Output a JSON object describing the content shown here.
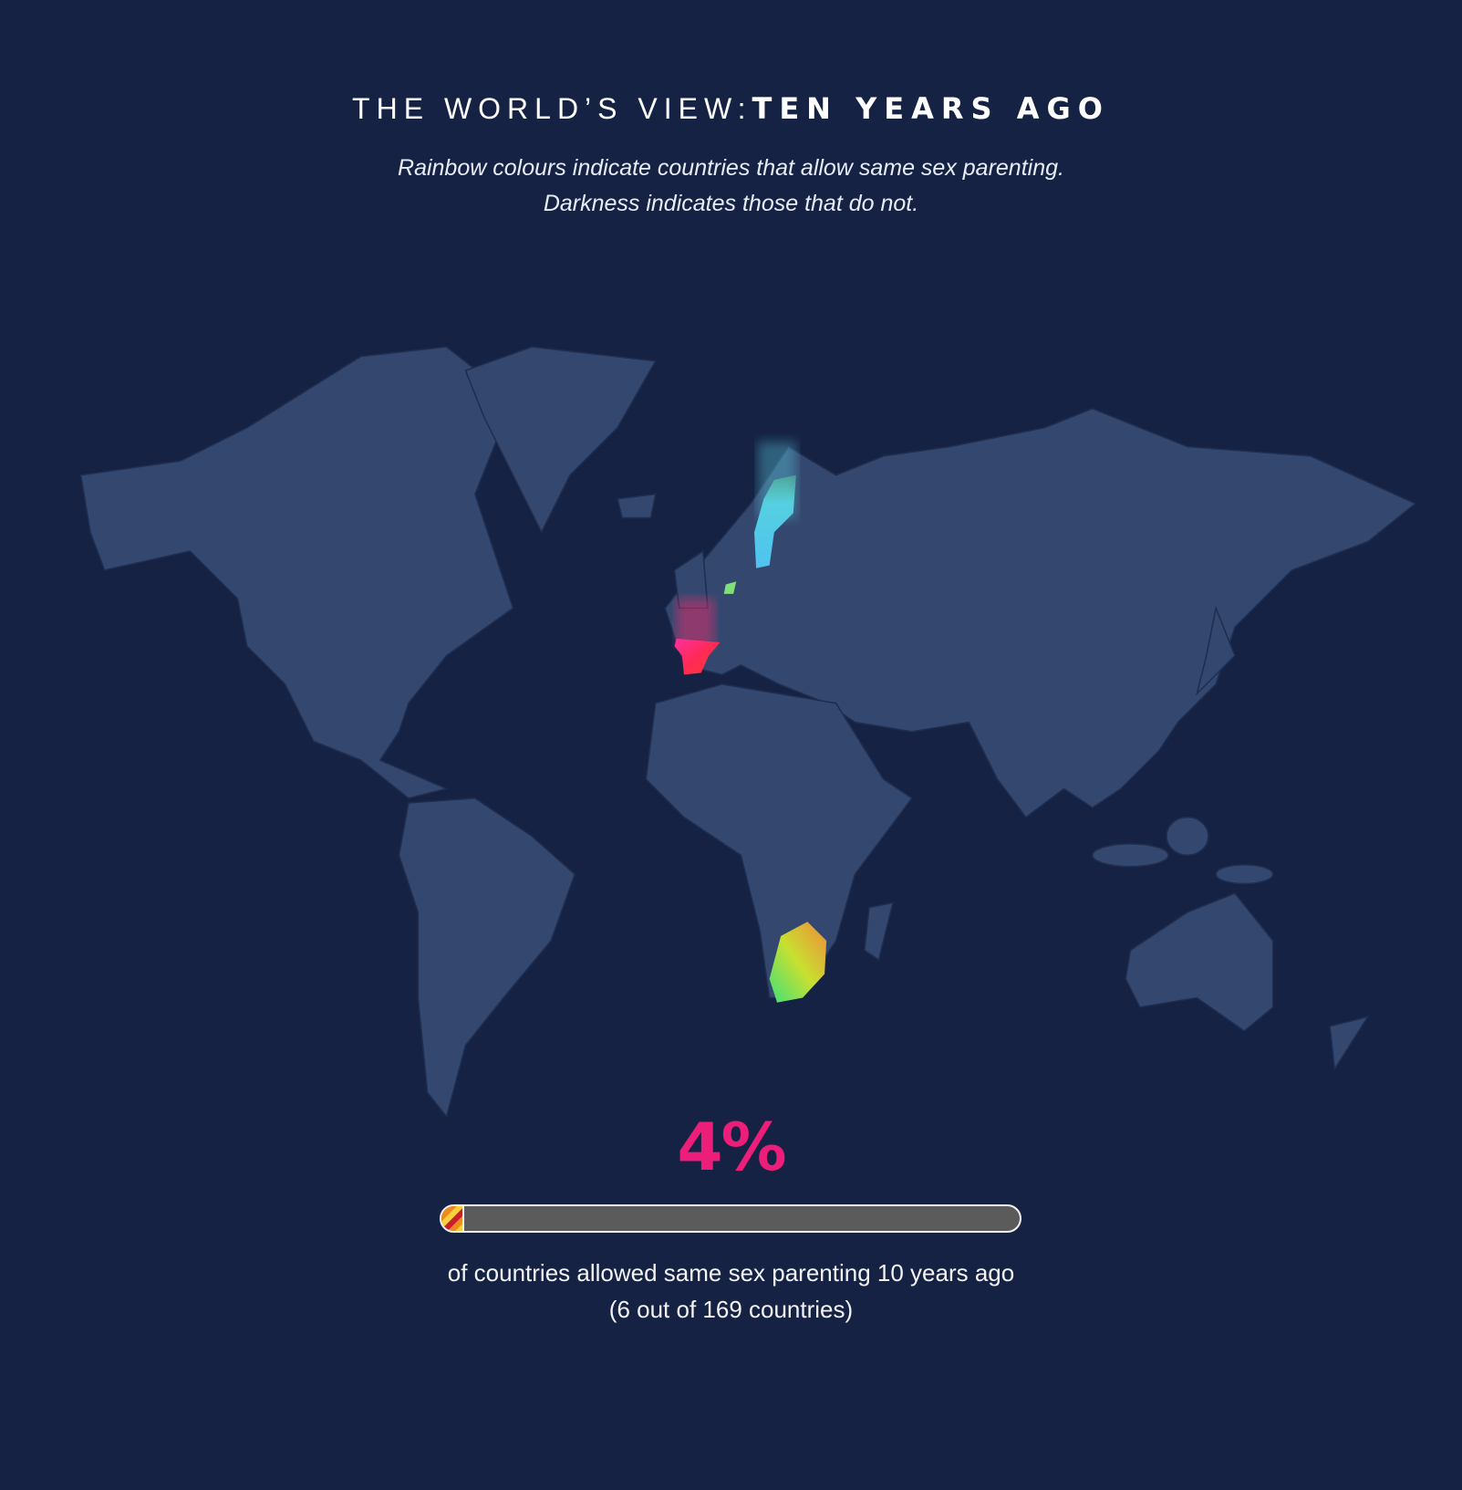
{
  "header": {
    "title_light": "THE WORLD’S VIEW:",
    "title_bold": "TEN YEARS AGO",
    "subtitle_line1": "Rainbow colours indicate countries that allow same sex parenting.",
    "subtitle_line2": "Darkness indicates those that do not."
  },
  "colors": {
    "background": "#152244",
    "land": "#34486f",
    "border": "#1e2d50",
    "accent": "#ec1e79",
    "bar_track": "#5b5b5b"
  },
  "chart_data": {
    "type": "map",
    "highlighted_countries": [
      "Sweden",
      "Netherlands",
      "Spain",
      "South Africa"
    ],
    "highlight_style": "rainbow gradient",
    "stat": {
      "percent_label": "4%",
      "allowed": 6,
      "total": 169,
      "fraction": 0.0355
    }
  },
  "footer": {
    "caption_line1": "of countries allowed same sex parenting 10 years ago",
    "caption_line2": "(6 out of 169 countries)"
  }
}
